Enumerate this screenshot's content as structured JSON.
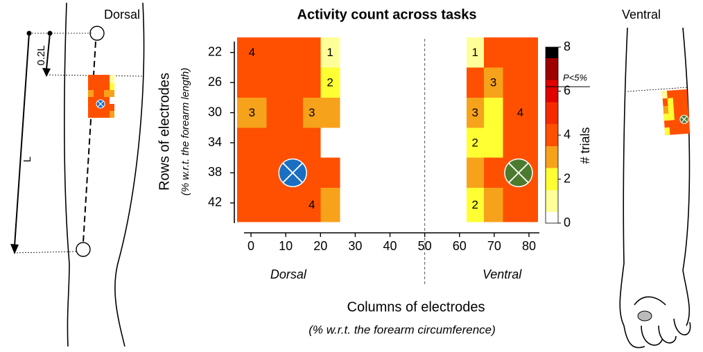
{
  "chart_data": {
    "type": "heatmap",
    "title": "Activity count across tasks",
    "x_label": "Columns of electrodes",
    "x_sublabel": "(% w.r.t. the forearm circumference)",
    "y_label": "Rows of electrodes",
    "y_sublabel": "(% w.r.t. the forearm length)",
    "xlim": [
      -4,
      83
    ],
    "xticks": [
      0,
      10,
      20,
      30,
      40,
      50,
      60,
      70,
      80
    ],
    "ylim": [
      20,
      44.5
    ],
    "yticks": [
      22,
      26,
      30,
      34,
      38,
      42
    ],
    "y_inverted": true,
    "divider_x": 50,
    "row_edges": [
      20,
      24,
      28,
      32,
      36,
      40,
      44.5
    ],
    "regions": [
      {
        "name": "Dorsal",
        "col_edges": [
          -4,
          4.5,
          15,
          20,
          25.5
        ],
        "values": [
          [
            4,
            4,
            4,
            1
          ],
          [
            4,
            4,
            4,
            2
          ],
          [
            3,
            4,
            3,
            3
          ],
          [
            4,
            4,
            4,
            0
          ],
          [
            4,
            4,
            4,
            4
          ],
          [
            4,
            4,
            4,
            3
          ]
        ],
        "value_labels": [
          [
            "4",
            null,
            null,
            "1"
          ],
          [
            null,
            null,
            null,
            "2"
          ],
          [
            "3",
            null,
            "3",
            null
          ],
          [
            null,
            null,
            null,
            null
          ],
          [
            null,
            null,
            null,
            null
          ],
          [
            null,
            null,
            "4",
            null
          ]
        ]
      },
      {
        "name": "Ventral",
        "col_edges": [
          62,
          67,
          72.5,
          82.5
        ],
        "values": [
          [
            1,
            4,
            4
          ],
          [
            4,
            3,
            4
          ],
          [
            3,
            2,
            4
          ],
          [
            2,
            2,
            4
          ],
          [
            3,
            4,
            4
          ],
          [
            2,
            3,
            4
          ]
        ],
        "value_labels": [
          [
            "1",
            null,
            null
          ],
          [
            null,
            "3",
            null
          ],
          [
            "3",
            null,
            "4"
          ],
          [
            "2",
            null,
            null
          ],
          [
            null,
            null,
            null
          ],
          [
            "2",
            null,
            null
          ]
        ]
      }
    ],
    "markers": [
      {
        "x": 12,
        "y": 38,
        "color": "#1b6fc2"
      },
      {
        "x": 77,
        "y": 38,
        "color": "#4c7a2e"
      }
    ],
    "colormap": [
      "#ffffff",
      "#ffff99",
      "#ffff33",
      "#f7a21b",
      "#fe5000",
      "#f52a00",
      "#e00000",
      "#9e0000",
      "#000000"
    ],
    "colorbar": {
      "label": "# trials",
      "lim": [
        0,
        8
      ],
      "ticks": [
        0,
        2,
        4,
        6,
        8
      ],
      "threshold": 6.2,
      "threshold_label": "P<5%"
    }
  },
  "illustration": {
    "left_label": "Dorsal",
    "right_label": "Ventral",
    "short_measure": "0.2L",
    "long_measure": "L"
  }
}
